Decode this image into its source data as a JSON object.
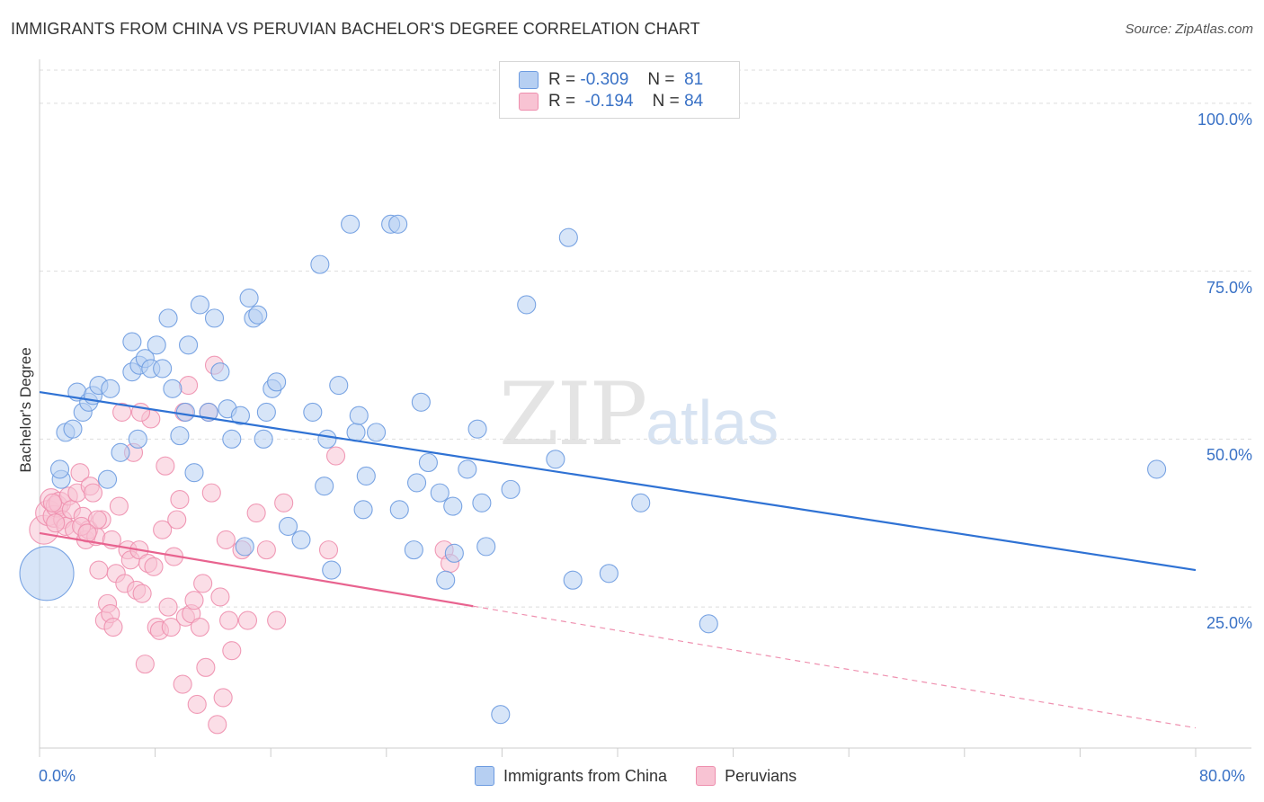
{
  "header": {
    "title": "IMMIGRANTS FROM CHINA VS PERUVIAN BACHELOR'S DEGREE CORRELATION CHART",
    "source": "Source: ZipAtlas.com"
  },
  "watermark": {
    "zip": "ZIP",
    "atlas": "atlas"
  },
  "legend": {
    "china": {
      "r_label": "R =",
      "r_value": "-0.309",
      "n_label": "N =",
      "n_value": "81"
    },
    "peru": {
      "r_label": "R =",
      "r_value": "-0.194",
      "n_label": "N =",
      "n_value": "84"
    }
  },
  "colors": {
    "china_fill": "#b6cff2",
    "china_stroke": "#6d9be0",
    "china_line": "#2f72d4",
    "peru_fill": "#f8c3d3",
    "peru_stroke": "#ee8fae",
    "peru_line": "#e8638f",
    "grid": "#dddddd",
    "axis_text": "#3a72c6"
  },
  "chart_data": {
    "type": "scatter",
    "title": "IMMIGRANTS FROM CHINA VS PERUVIAN BACHELOR'S DEGREE CORRELATION CHART",
    "xlabel": "",
    "ylabel": "Bachelor's Degree",
    "xlim": [
      0,
      80
    ],
    "ylim": [
      4,
      106
    ],
    "x_tick_labels": [
      "0.0%",
      "80.0%"
    ],
    "y_tick_labels": [
      "25.0%",
      "50.0%",
      "75.0%",
      "100.0%"
    ],
    "y_ticks": [
      25,
      50,
      75,
      100
    ],
    "grid": true,
    "legend_position": "top-center",
    "series": [
      {
        "name": "Immigrants from China",
        "trend": {
          "x": [
            0,
            80
          ],
          "y": [
            57,
            30.5
          ],
          "solid_until": 80
        },
        "points": [
          [
            0.5,
            30,
            30
          ],
          [
            1.5,
            44,
            10
          ],
          [
            1.4,
            45.5,
            10
          ],
          [
            1.8,
            51,
            10
          ],
          [
            2.3,
            51.5,
            10
          ],
          [
            2.6,
            57,
            10
          ],
          [
            3.0,
            54,
            10
          ],
          [
            3.4,
            55.5,
            10
          ],
          [
            3.7,
            56.5,
            10
          ],
          [
            4.1,
            58,
            10
          ],
          [
            4.7,
            44,
            10
          ],
          [
            4.9,
            57.5,
            10
          ],
          [
            5.6,
            48,
            10
          ],
          [
            6.4,
            60,
            10
          ],
          [
            6.4,
            64.5,
            10
          ],
          [
            6.9,
            61,
            10
          ],
          [
            6.8,
            50,
            10
          ],
          [
            7.3,
            62,
            10
          ],
          [
            7.7,
            60.5,
            10
          ],
          [
            8.1,
            64,
            10
          ],
          [
            8.5,
            60.5,
            10
          ],
          [
            8.9,
            68,
            10
          ],
          [
            9.2,
            57.5,
            10
          ],
          [
            9.7,
            50.5,
            10
          ],
          [
            10.1,
            54,
            10
          ],
          [
            10.3,
            64,
            10
          ],
          [
            10.7,
            45,
            10
          ],
          [
            11.1,
            70,
            10
          ],
          [
            11.7,
            54,
            10
          ],
          [
            12.1,
            68,
            10
          ],
          [
            12.5,
            60,
            10
          ],
          [
            13.0,
            54.5,
            10
          ],
          [
            13.3,
            50,
            10
          ],
          [
            13.9,
            53.5,
            10
          ],
          [
            14.2,
            34,
            10
          ],
          [
            14.5,
            71,
            10
          ],
          [
            14.8,
            68,
            10
          ],
          [
            15.1,
            68.5,
            10
          ],
          [
            15.5,
            50,
            10
          ],
          [
            15.7,
            54,
            10
          ],
          [
            16.1,
            57.5,
            10
          ],
          [
            16.4,
            58.5,
            10
          ],
          [
            17.2,
            37,
            10
          ],
          [
            18.1,
            35,
            10
          ],
          [
            18.9,
            54,
            10
          ],
          [
            19.4,
            76,
            10
          ],
          [
            19.7,
            43,
            10
          ],
          [
            19.9,
            50,
            10
          ],
          [
            20.2,
            30.5,
            10
          ],
          [
            20.7,
            58,
            10
          ],
          [
            21.5,
            82,
            10
          ],
          [
            21.9,
            51,
            10
          ],
          [
            22.1,
            53.5,
            10
          ],
          [
            22.4,
            39.5,
            10
          ],
          [
            22.6,
            44.5,
            10
          ],
          [
            23.3,
            51,
            10
          ],
          [
            24.3,
            82,
            10
          ],
          [
            24.9,
            39.5,
            10
          ],
          [
            25.9,
            33.5,
            10
          ],
          [
            26.1,
            43.5,
            10
          ],
          [
            26.4,
            55.5,
            10
          ],
          [
            26.9,
            46.5,
            10
          ],
          [
            27.7,
            42,
            10
          ],
          [
            28.1,
            29,
            10
          ],
          [
            28.6,
            40,
            10
          ],
          [
            28.7,
            33,
            10
          ],
          [
            29.6,
            45.5,
            10
          ],
          [
            30.6,
            40.5,
            10
          ],
          [
            30.3,
            51.5,
            10
          ],
          [
            30.9,
            34,
            10
          ],
          [
            31.9,
            9,
            10
          ],
          [
            32.6,
            42.5,
            10
          ],
          [
            33.7,
            70,
            10
          ],
          [
            35.7,
            47,
            10
          ],
          [
            36.6,
            80,
            10
          ],
          [
            36.9,
            29,
            10
          ],
          [
            39.4,
            30,
            10
          ],
          [
            41.6,
            40.5,
            10
          ],
          [
            46.3,
            22.5,
            10
          ],
          [
            77.3,
            45.5,
            10
          ],
          [
            24.8,
            82,
            0
          ]
        ]
      },
      {
        "name": "Peruvians",
        "trend": {
          "x": [
            0,
            80
          ],
          "y": [
            36,
            7
          ],
          "solid_until": 30
        },
        "points": [
          [
            0.3,
            36.5,
            16
          ],
          [
            0.6,
            39,
            14
          ],
          [
            0.8,
            41,
            12
          ],
          [
            1.0,
            38.5,
            12
          ],
          [
            1.2,
            40,
            12
          ],
          [
            1.4,
            40.5,
            12
          ],
          [
            1.6,
            38,
            10
          ],
          [
            1.8,
            37,
            10
          ],
          [
            2.0,
            41.5,
            10
          ],
          [
            2.2,
            39.5,
            10
          ],
          [
            2.4,
            36.5,
            10
          ],
          [
            2.6,
            42,
            10
          ],
          [
            2.8,
            45,
            10
          ],
          [
            3.0,
            38.5,
            10
          ],
          [
            3.2,
            35,
            10
          ],
          [
            3.4,
            36.5,
            10
          ],
          [
            3.5,
            43,
            10
          ],
          [
            3.7,
            42,
            10
          ],
          [
            3.9,
            35.5,
            10
          ],
          [
            4.1,
            30.5,
            10
          ],
          [
            4.3,
            38,
            10
          ],
          [
            4.5,
            23,
            10
          ],
          [
            4.7,
            25.5,
            10
          ],
          [
            4.9,
            24,
            10
          ],
          [
            5.1,
            22,
            10
          ],
          [
            5.3,
            30,
            10
          ],
          [
            5.5,
            40,
            10
          ],
          [
            5.7,
            54,
            10
          ],
          [
            5.9,
            28.5,
            10
          ],
          [
            6.1,
            33.5,
            10
          ],
          [
            6.3,
            32,
            10
          ],
          [
            6.5,
            48,
            10
          ],
          [
            6.7,
            27.5,
            10
          ],
          [
            6.9,
            33.5,
            10
          ],
          [
            7.1,
            27,
            10
          ],
          [
            7.3,
            16.5,
            10
          ],
          [
            7.5,
            31.5,
            10
          ],
          [
            7.7,
            53,
            10
          ],
          [
            7.9,
            31,
            10
          ],
          [
            8.1,
            22,
            10
          ],
          [
            8.3,
            21.5,
            10
          ],
          [
            8.5,
            36.5,
            10
          ],
          [
            8.7,
            46,
            10
          ],
          [
            8.9,
            25,
            10
          ],
          [
            9.1,
            22,
            10
          ],
          [
            9.3,
            32.5,
            10
          ],
          [
            9.5,
            38,
            10
          ],
          [
            9.7,
            41,
            10
          ],
          [
            9.9,
            13.5,
            10
          ],
          [
            10.1,
            23.5,
            10
          ],
          [
            10.3,
            58,
            10
          ],
          [
            10.5,
            24,
            10
          ],
          [
            10.7,
            26,
            10
          ],
          [
            10.9,
            10.5,
            10
          ],
          [
            11.1,
            22,
            10
          ],
          [
            11.3,
            28.5,
            10
          ],
          [
            11.5,
            16,
            10
          ],
          [
            11.7,
            54,
            10
          ],
          [
            11.9,
            42,
            10
          ],
          [
            12.1,
            61,
            10
          ],
          [
            12.3,
            7.5,
            10
          ],
          [
            12.5,
            26.5,
            10
          ],
          [
            12.7,
            11.5,
            10
          ],
          [
            12.9,
            35,
            10
          ],
          [
            13.1,
            23,
            10
          ],
          [
            13.3,
            18.5,
            10
          ],
          [
            14.0,
            33.5,
            10
          ],
          [
            14.4,
            23,
            10
          ],
          [
            15.0,
            39,
            10
          ],
          [
            15.7,
            33.5,
            10
          ],
          [
            16.4,
            23,
            10
          ],
          [
            16.9,
            40.5,
            10
          ],
          [
            20.0,
            33.5,
            10
          ],
          [
            20.5,
            47.5,
            10
          ],
          [
            28.0,
            33.5,
            10
          ],
          [
            28.4,
            31.5,
            10
          ],
          [
            7.0,
            54,
            0
          ],
          [
            10.0,
            54,
            0
          ],
          [
            4.0,
            38,
            0
          ],
          [
            2.9,
            37,
            0
          ],
          [
            1.1,
            37.5,
            0
          ],
          [
            0.9,
            40.5,
            0
          ],
          [
            3.3,
            36,
            0
          ],
          [
            5.0,
            35,
            0
          ]
        ]
      }
    ]
  },
  "bottom_legend": [
    {
      "label": "Immigrants from China"
    },
    {
      "label": "Peruvians"
    }
  ]
}
